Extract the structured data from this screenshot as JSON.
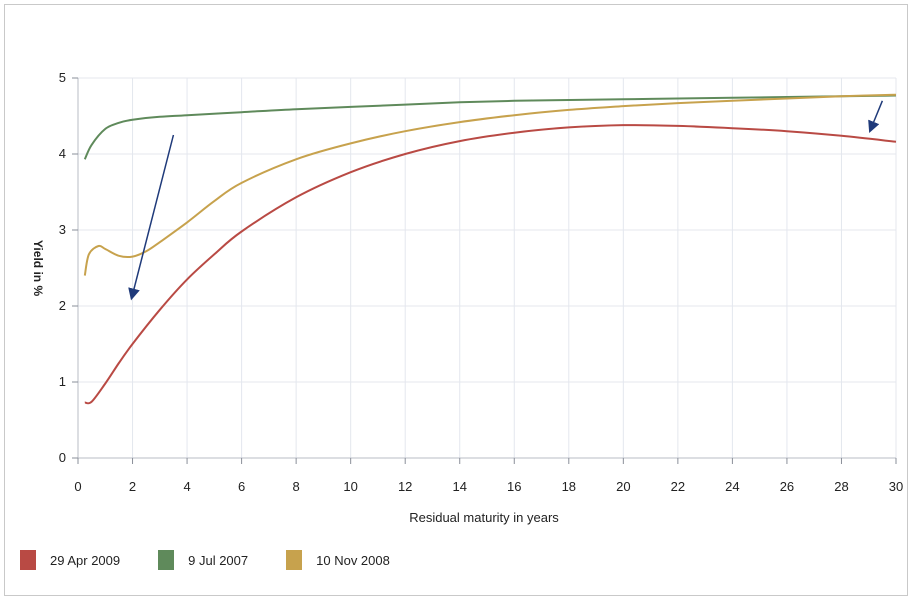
{
  "chart_data": {
    "type": "line",
    "title": "",
    "xlabel": "Residual maturity in years",
    "ylabel": "Yield in %",
    "xlim": [
      0,
      30
    ],
    "ylim": [
      0,
      5
    ],
    "x_ticks": [
      "0",
      "2",
      "4",
      "6",
      "8",
      "10",
      "12",
      "14",
      "16",
      "18",
      "20",
      "22",
      "24",
      "26",
      "28",
      "30"
    ],
    "y_ticks": [
      "0",
      "1",
      "2",
      "3",
      "4",
      "5"
    ],
    "grid": true,
    "legend_position": "bottom-left",
    "series": [
      {
        "name": "29 Apr 2009",
        "color": "#b94a44",
        "x": [
          0.25,
          0.5,
          1,
          1.5,
          2,
          3,
          4,
          5,
          6,
          8,
          10,
          12,
          14,
          16,
          18,
          20,
          22,
          24,
          26,
          28,
          30
        ],
        "y": [
          0.73,
          0.74,
          0.98,
          1.25,
          1.5,
          1.95,
          2.35,
          2.68,
          2.98,
          3.43,
          3.76,
          4.0,
          4.17,
          4.28,
          4.35,
          4.38,
          4.37,
          4.34,
          4.3,
          4.24,
          4.16
        ]
      },
      {
        "name": "9 Jul 2007",
        "color": "#5f8a5b",
        "x": [
          0.25,
          0.5,
          1,
          1.5,
          2,
          3,
          4,
          6,
          8,
          10,
          12,
          14,
          16,
          18,
          20,
          22,
          24,
          26,
          28,
          30
        ],
        "y": [
          3.93,
          4.12,
          4.33,
          4.41,
          4.45,
          4.49,
          4.51,
          4.55,
          4.59,
          4.62,
          4.65,
          4.68,
          4.7,
          4.71,
          4.72,
          4.73,
          4.74,
          4.75,
          4.76,
          4.77
        ]
      },
      {
        "name": "10 Nov 2008",
        "color": "#c7a24d",
        "x": [
          0.25,
          0.4,
          0.75,
          1,
          1.5,
          2,
          2.5,
          3,
          4,
          5,
          6,
          8,
          10,
          12,
          14,
          16,
          18,
          20,
          22,
          24,
          26,
          28,
          30
        ],
        "y": [
          2.4,
          2.68,
          2.79,
          2.75,
          2.66,
          2.65,
          2.72,
          2.84,
          3.1,
          3.38,
          3.62,
          3.93,
          4.14,
          4.3,
          4.42,
          4.51,
          4.58,
          4.63,
          4.67,
          4.7,
          4.73,
          4.76,
          4.78
        ]
      }
    ],
    "annotations": [
      {
        "type": "arrow",
        "from": [
          3.5,
          4.25
        ],
        "to": [
          2.0,
          2.15
        ],
        "color": "#1f3a7a"
      },
      {
        "type": "arrow",
        "from": [
          29.5,
          4.7
        ],
        "to": [
          29.1,
          4.35
        ],
        "color": "#1f3a7a"
      }
    ]
  }
}
